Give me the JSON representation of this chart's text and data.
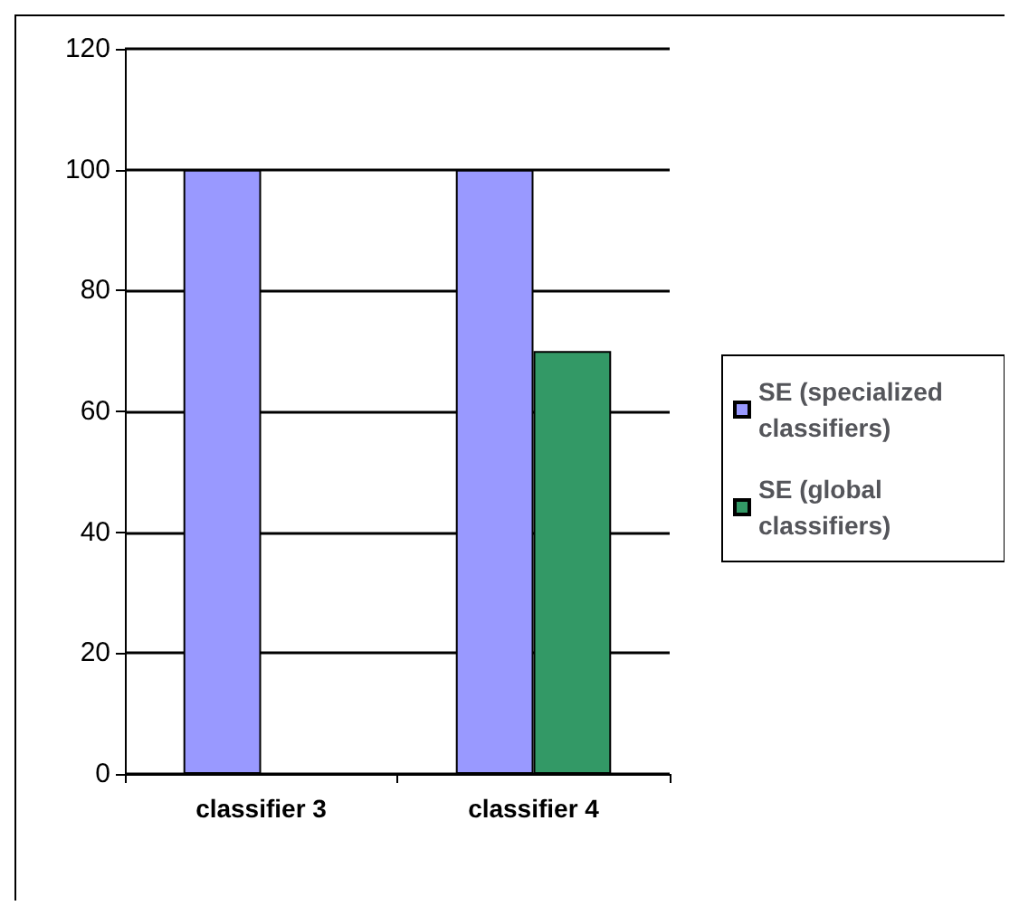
{
  "chart_data": {
    "type": "bar",
    "categories": [
      "classifier 3",
      "classifier 4"
    ],
    "series": [
      {
        "name": "SE (specialized classifiers)",
        "color": "#9999ff",
        "values": [
          100,
          100
        ]
      },
      {
        "name": "SE (global classifiers)",
        "color": "#339966",
        "values": [
          null,
          70
        ]
      }
    ],
    "ylim": [
      0,
      120
    ],
    "yticks": [
      0,
      20,
      40,
      60,
      80,
      100,
      120
    ],
    "grid": "y",
    "legend": "right"
  }
}
